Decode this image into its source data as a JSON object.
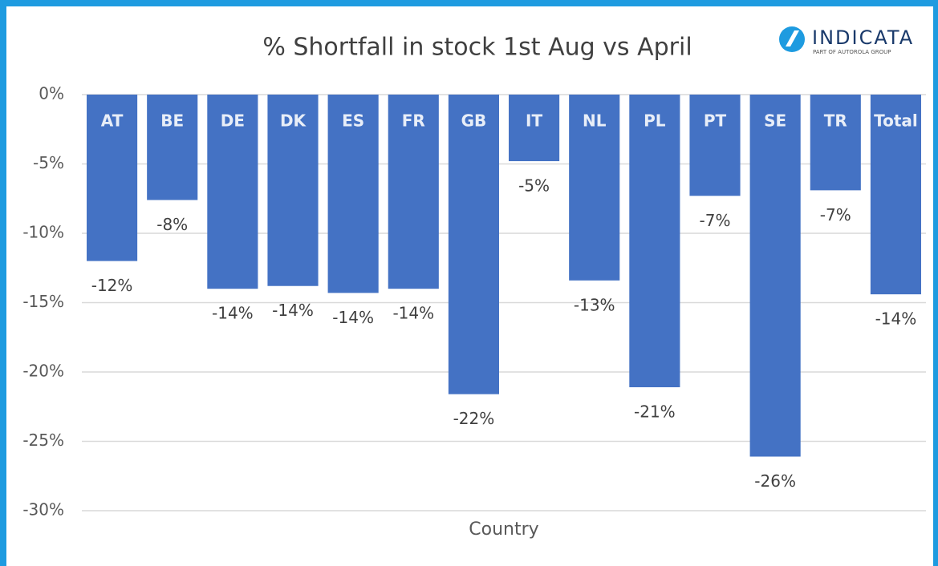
{
  "chart_data": {
    "type": "bar",
    "title": "% Shortfall in stock 1st Aug vs  April",
    "brand": "INDICATA",
    "brand_tagline": "PART OF AUTOROLA GROUP",
    "x_label": "Country",
    "categories": [
      "AT",
      "BE",
      "DE",
      "DK",
      "ES",
      "FR",
      "GB",
      "IT",
      "NL",
      "PL",
      "PT",
      "SE",
      "TR",
      "Total"
    ],
    "values": [
      -12,
      -7.6,
      -14,
      -13.8,
      -14.3,
      -14,
      -21.6,
      -4.8,
      -13.4,
      -21.1,
      -7.3,
      -26.1,
      -6.9,
      -14.4
    ],
    "value_labels": [
      "-12%",
      "-8%",
      "-14%",
      "-14%",
      "-14%",
      "-14%",
      "-22%",
      "-5%",
      "-13%",
      "-21%",
      "-7%",
      "-26%",
      "-7%",
      "-14%"
    ],
    "color": "#4472c4",
    "ylim": [
      -30,
      0
    ],
    "yticks": [
      {
        "value": 0,
        "label": "0%"
      },
      {
        "value": -5,
        "label": "-5%"
      },
      {
        "value": -10,
        "label": "-10%"
      },
      {
        "value": -15,
        "label": "-15%"
      },
      {
        "value": -20,
        "label": "-20%"
      },
      {
        "value": -25,
        "label": "-25%"
      },
      {
        "value": -30,
        "label": "-30%"
      }
    ],
    "grid": true
  }
}
